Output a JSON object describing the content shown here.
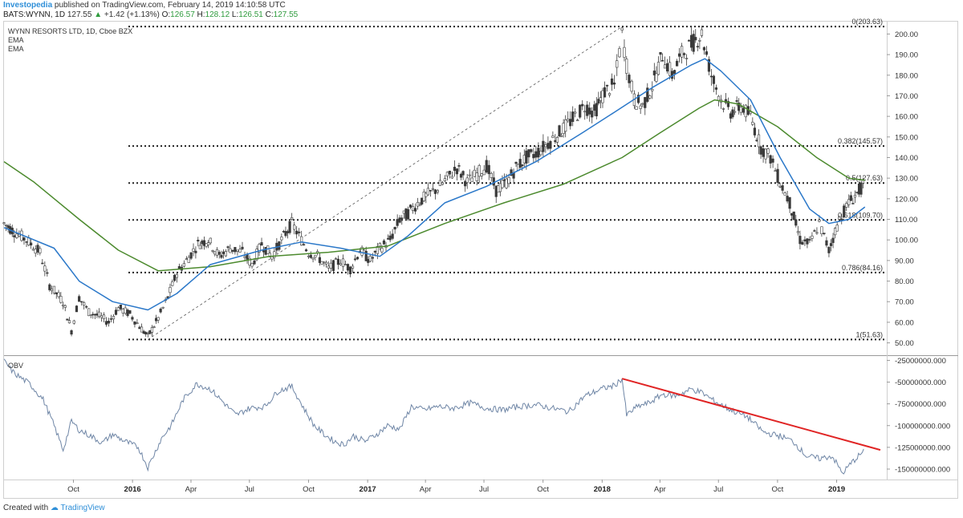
{
  "header": {
    "brand": "Investopedia",
    "published": "published on TradingView.com, February 14, 2019 14:10:58 UTC",
    "symbol": "BATS:WYNN, 1D",
    "last": "127.55",
    "change_arrow": "▲",
    "change": "+1.42 (+1.13%)",
    "open_label": "O:",
    "open": "126.57",
    "high_label": "H:",
    "high": "128.12",
    "low_label": "L:",
    "low": "126.51",
    "close_label": "C:",
    "close": "127.55"
  },
  "legend": {
    "title": "WYNN RESORTS LTD, 1D, Cboe BZX",
    "ema1": "EMA",
    "ema2": "EMA"
  },
  "footer": {
    "created_with": "Created with",
    "brand": "TradingView"
  },
  "colors": {
    "candle": "#3a3a3a",
    "ema_fast": "#2b78c9",
    "ema_slow": "#4c8a2e",
    "obv": "#6f86a6",
    "trendline": "#e02424",
    "fib": "#222222"
  },
  "chart_data": [
    {
      "type": "candlestick",
      "title": "WYNN RESORTS LTD, 1D, Cboe BZX",
      "x_ticks": [
        "Oct",
        "2016",
        "Apr",
        "Jul",
        "Oct",
        "2017",
        "Apr",
        "Jul",
        "Oct",
        "2018",
        "Apr",
        "Jul",
        "Oct",
        "2019"
      ],
      "x_range": [
        "2015-06-15",
        "2019-03-20"
      ],
      "y_ticks": [
        50.0,
        60.0,
        70.0,
        80.0,
        90.0,
        100.0,
        110.0,
        120.0,
        130.0,
        140.0,
        150.0,
        160.0,
        170.0,
        180.0,
        190.0,
        200.0
      ],
      "ylim": [
        44,
        206
      ],
      "fib_levels": [
        {
          "label": "0(203.63)",
          "value": 203.63
        },
        {
          "label": "0.382(145.57)",
          "value": 145.57
        },
        {
          "label": "0.5(127.63)",
          "value": 127.63
        },
        {
          "label": "0.618(109.70)",
          "value": 109.7
        },
        {
          "label": "0.786(84.16)",
          "value": 84.16
        },
        {
          "label": "1(51.63)",
          "value": 51.63
        }
      ],
      "fib_anchor": {
        "start": [
          "2016-01-25",
          51.63
        ],
        "end": [
          "2018-02-01",
          203.63
        ]
      },
      "price_series": {
        "x": [
          "2015-06-15",
          "2015-07-01",
          "2015-07-20",
          "2015-08-10",
          "2015-08-25",
          "2015-09-15",
          "2015-09-28",
          "2015-10-10",
          "2015-10-25",
          "2015-11-10",
          "2015-11-25",
          "2015-12-10",
          "2015-12-28",
          "2016-01-12",
          "2016-01-25",
          "2016-02-10",
          "2016-02-25",
          "2016-03-10",
          "2016-03-25",
          "2016-04-12",
          "2016-04-28",
          "2016-05-15",
          "2016-06-01",
          "2016-06-20",
          "2016-07-05",
          "2016-07-20",
          "2016-08-05",
          "2016-08-20",
          "2016-09-05",
          "2016-09-20",
          "2016-10-01",
          "2016-10-15",
          "2016-11-01",
          "2016-11-20",
          "2016-12-05",
          "2016-12-20",
          "2017-01-05",
          "2017-01-20",
          "2017-02-05",
          "2017-02-20",
          "2017-03-05",
          "2017-03-20",
          "2017-04-05",
          "2017-04-20",
          "2017-05-05",
          "2017-05-20",
          "2017-06-05",
          "2017-06-20",
          "2017-07-05",
          "2017-07-20",
          "2017-08-05",
          "2017-08-20",
          "2017-09-05",
          "2017-09-20",
          "2017-10-05",
          "2017-10-20",
          "2017-11-05",
          "2017-11-20",
          "2017-12-05",
          "2017-12-20",
          "2018-01-05",
          "2018-01-20",
          "2018-02-01",
          "2018-02-08",
          "2018-02-20",
          "2018-03-05",
          "2018-03-20",
          "2018-04-05",
          "2018-04-20",
          "2018-05-05",
          "2018-05-20",
          "2018-06-05",
          "2018-06-20",
          "2018-07-05",
          "2018-07-20",
          "2018-08-05",
          "2018-08-20",
          "2018-09-05",
          "2018-09-20",
          "2018-10-05",
          "2018-10-20",
          "2018-11-05",
          "2018-11-20",
          "2018-12-05",
          "2018-12-20",
          "2019-01-05",
          "2019-01-20",
          "2019-02-05",
          "2019-02-14"
        ],
        "close": [
          108,
          104,
          100,
          94,
          78,
          70,
          56,
          72,
          65,
          63,
          60,
          67,
          64,
          58,
          53,
          62,
          72,
          84,
          90,
          98,
          100,
          92,
          96,
          94,
          88,
          98,
          92,
          100,
          108,
          100,
          94,
          92,
          86,
          90,
          86,
          95,
          90,
          96,
          100,
          110,
          113,
          118,
          122,
          125,
          130,
          135,
          128,
          132,
          136,
          124,
          128,
          135,
          140,
          142,
          146,
          150,
          155,
          160,
          165,
          162,
          172,
          175,
          200,
          185,
          168,
          165,
          175,
          190,
          180,
          190,
          195,
          200,
          180,
          168,
          162,
          165,
          160,
          145,
          140,
          128,
          118,
          100,
          98,
          108,
          95,
          110,
          118,
          124,
          127.55
        ]
      },
      "ema_fast": {
        "name": "EMA",
        "x": [
          "2015-06-15",
          "2015-09-01",
          "2015-10-10",
          "2015-12-01",
          "2016-01-25",
          "2016-03-10",
          "2016-05-01",
          "2016-07-20",
          "2016-09-20",
          "2016-11-20",
          "2017-01-20",
          "2017-03-05",
          "2017-05-01",
          "2017-07-05",
          "2017-09-20",
          "2017-12-01",
          "2018-01-20",
          "2018-03-20",
          "2018-05-20",
          "2018-06-10",
          "2018-07-05",
          "2018-08-20",
          "2018-10-05",
          "2018-11-20",
          "2018-12-20",
          "2019-01-20",
          "2019-02-14"
        ],
        "y": [
          106,
          96,
          80,
          70,
          66,
          74,
          88,
          95,
          99,
          96,
          92,
          102,
          118,
          126,
          138,
          152,
          162,
          174,
          185,
          188,
          182,
          168,
          140,
          115,
          108,
          110,
          116
        ]
      },
      "ema_slow": {
        "name": "EMA",
        "x": [
          "2015-06-15",
          "2015-08-01",
          "2015-10-10",
          "2015-12-10",
          "2016-02-10",
          "2016-05-01",
          "2016-08-01",
          "2016-11-01",
          "2017-02-01",
          "2017-05-01",
          "2017-08-01",
          "2017-11-01",
          "2018-02-01",
          "2018-04-01",
          "2018-06-01",
          "2018-06-25",
          "2018-08-01",
          "2018-10-01",
          "2018-12-01",
          "2019-01-20",
          "2019-02-14"
        ],
        "y": [
          138,
          128,
          110,
          95,
          85,
          87,
          92,
          94,
          97,
          108,
          118,
          127,
          140,
          152,
          164,
          168,
          166,
          155,
          140,
          130,
          129
        ]
      }
    },
    {
      "type": "line",
      "title": "OBV",
      "x_ticks": [
        "Oct",
        "2016",
        "Apr",
        "Jul",
        "Oct",
        "2017",
        "Apr",
        "Jul",
        "Oct",
        "2018",
        "Apr",
        "Jul",
        "Oct",
        "2019"
      ],
      "y_ticks": [
        -25000000.0,
        -50000000.0,
        -75000000.0,
        -100000000.0,
        -125000000.0,
        -150000000.0
      ],
      "y_tick_labels": [
        "-25000000.000",
        "-50000000.000",
        "-75000000.000",
        "-100000000.000",
        "-125000000.000",
        "-150000000.000"
      ],
      "ylim": [
        -162000000,
        -20000000
      ],
      "series": [
        {
          "name": "OBV",
          "x": [
            "2015-06-15",
            "2015-07-01",
            "2015-07-25",
            "2015-08-15",
            "2015-09-01",
            "2015-09-15",
            "2015-09-28",
            "2015-10-10",
            "2015-10-28",
            "2015-11-15",
            "2015-12-01",
            "2015-12-20",
            "2016-01-10",
            "2016-01-25",
            "2016-02-15",
            "2016-03-01",
            "2016-03-20",
            "2016-04-10",
            "2016-05-01",
            "2016-05-20",
            "2016-06-10",
            "2016-07-01",
            "2016-07-25",
            "2016-08-15",
            "2016-09-05",
            "2016-09-25",
            "2016-10-10",
            "2016-10-25",
            "2016-11-10",
            "2016-11-25",
            "2016-12-10",
            "2016-12-28",
            "2017-01-15",
            "2017-02-01",
            "2017-02-20",
            "2017-03-10",
            "2017-03-30",
            "2017-04-20",
            "2017-05-15",
            "2017-06-10",
            "2017-07-05",
            "2017-07-30",
            "2017-08-25",
            "2017-09-20",
            "2017-10-15",
            "2017-11-10",
            "2017-12-05",
            "2017-12-30",
            "2018-01-20",
            "2018-02-01",
            "2018-02-08",
            "2018-02-25",
            "2018-03-15",
            "2018-04-05",
            "2018-04-25",
            "2018-05-20",
            "2018-06-05",
            "2018-06-25",
            "2018-07-20",
            "2018-08-15",
            "2018-09-10",
            "2018-10-05",
            "2018-10-25",
            "2018-11-15",
            "2018-12-05",
            "2018-12-25",
            "2019-01-10",
            "2019-01-25",
            "2019-02-14"
          ],
          "y": [
            -26000000,
            -40000000,
            -52000000,
            -70000000,
            -100000000,
            -128000000,
            -95000000,
            -105000000,
            -112000000,
            -120000000,
            -110000000,
            -118000000,
            -125000000,
            -148000000,
            -115000000,
            -100000000,
            -70000000,
            -52000000,
            -58000000,
            -72000000,
            -88000000,
            -80000000,
            -78000000,
            -60000000,
            -55000000,
            -82000000,
            -100000000,
            -110000000,
            -118000000,
            -122000000,
            -112000000,
            -118000000,
            -110000000,
            -100000000,
            -104000000,
            -78000000,
            -82000000,
            -78000000,
            -80000000,
            -74000000,
            -80000000,
            -82000000,
            -78000000,
            -76000000,
            -80000000,
            -84000000,
            -66000000,
            -58000000,
            -54000000,
            -46000000,
            -88000000,
            -78000000,
            -74000000,
            -64000000,
            -66000000,
            -58000000,
            -62000000,
            -72000000,
            -82000000,
            -90000000,
            -108000000,
            -112000000,
            -118000000,
            -135000000,
            -138000000,
            -135000000,
            -155000000,
            -142000000,
            -128000000
          ]
        },
        {
          "name": "",
          "x": [
            "2018-02-01",
            "2019-03-10"
          ],
          "y": [
            -46000000,
            -128000000
          ]
        }
      ]
    }
  ]
}
